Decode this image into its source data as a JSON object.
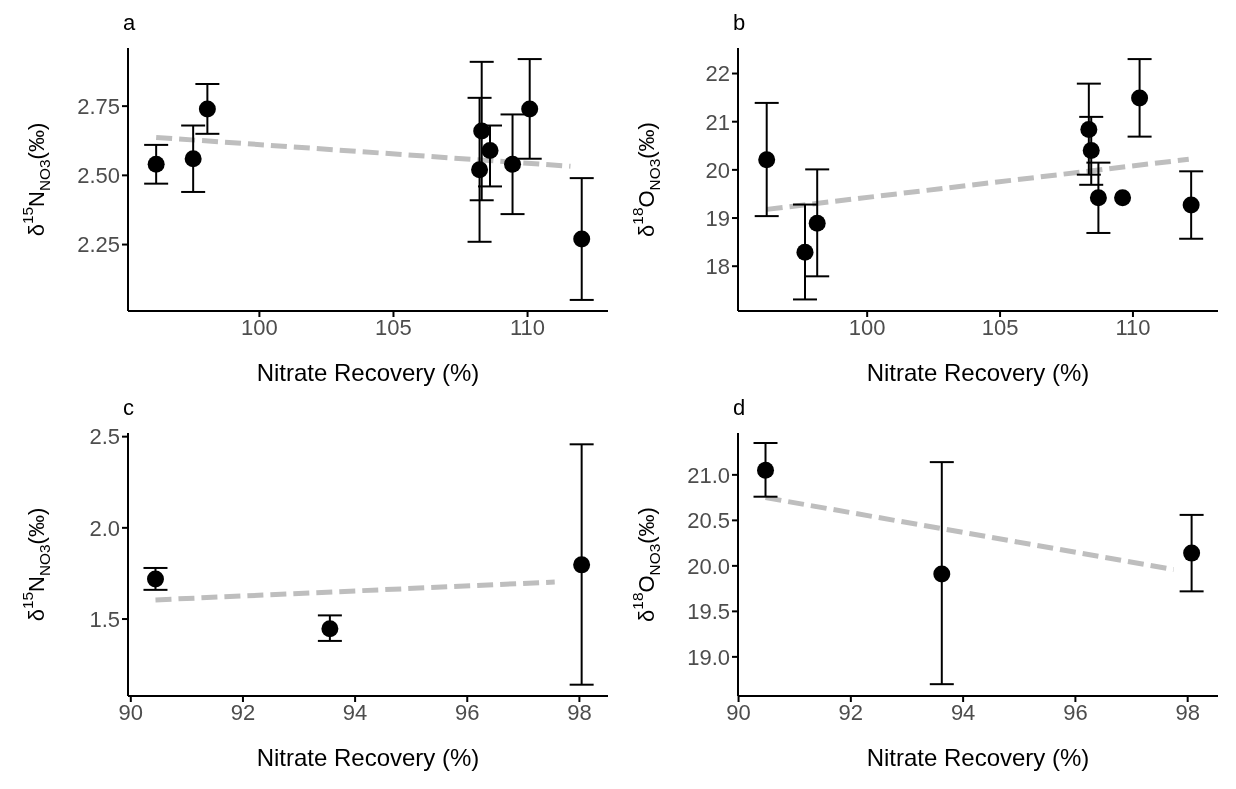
{
  "chart_data": [
    {
      "type": "scatter",
      "title": "a",
      "xlabel": "Nitrate Recovery (%)",
      "ylabel": "δ$^{15}$N$_{NO3}$(‰)",
      "xlim": [
        95.1,
        113.0
      ],
      "xticks": [
        100,
        105,
        110
      ],
      "ylim": [
        2.01,
        2.96
      ],
      "yticks": [
        {
          "value": 2.25,
          "label": "2.25"
        },
        {
          "value": 2.5,
          "label": "2.50"
        },
        {
          "value": 2.75,
          "label": "2.75"
        }
      ],
      "grid": false,
      "series": [
        {
          "type": "line",
          "color": "#bebebe",
          "line_style": "dashed",
          "marker": "none",
          "x": [
            96.15,
            111.6
          ],
          "values": [
            2.637,
            2.533
          ]
        },
        {
          "color": "#000000",
          "marker": "circle",
          "x": [
            96.15,
            97.53,
            98.06,
            108.21,
            108.29,
            108.6,
            109.44,
            110.08,
            112.02
          ],
          "values": [
            2.54,
            2.56,
            2.74,
            2.52,
            2.66,
            2.59,
            2.54,
            2.74,
            2.27
          ],
          "errors": [
            [
              2.47,
              2.61
            ],
            [
              2.44,
              2.68
            ],
            [
              2.65,
              2.83
            ],
            [
              2.26,
              2.78
            ],
            [
              2.41,
              2.91
            ],
            [
              2.46,
              2.68
            ],
            [
              2.36,
              2.72
            ],
            [
              2.56,
              2.92
            ],
            [
              2.05,
              2.49
            ]
          ]
        }
      ]
    },
    {
      "type": "scatter",
      "title": "b",
      "xlabel": "Nitrate Recovery (%)",
      "ylabel": "δ$^{18}$O$_{NO3}$(‰)",
      "xlim": [
        95.14,
        113.2
      ],
      "xticks": [
        100,
        105,
        110
      ],
      "ylim": [
        17.07,
        22.53
      ],
      "yticks": [
        18,
        19,
        20,
        21,
        22
      ],
      "grid": false,
      "series": [
        {
          "type": "line",
          "color": "#bebebe",
          "line_style": "dashed",
          "marker": "none",
          "x": [
            96.22,
            112.1
          ],
          "values": [
            19.18,
            20.22
          ]
        },
        {
          "color": "#000000",
          "marker": "circle",
          "x": [
            96.22,
            97.66,
            98.12,
            108.34,
            108.43,
            108.7,
            109.61,
            110.25,
            112.19
          ],
          "values": [
            20.21,
            18.29,
            18.89,
            20.84,
            20.4,
            19.42,
            19.42,
            21.49,
            19.27
          ],
          "errors": [
            [
              19.04,
              21.39
            ],
            [
              17.31,
              19.28
            ],
            [
              17.79,
              20.01
            ],
            [
              19.9,
              21.79
            ],
            [
              19.69,
              21.1
            ],
            [
              18.69,
              20.15
            ],
            null,
            [
              20.69,
              22.3
            ],
            [
              18.57,
              19.97
            ]
          ]
        }
      ]
    },
    {
      "type": "scatter",
      "title": "c",
      "xlabel": "Nitrate Recovery (%)",
      "ylabel": "δ$^{15}$N$_{NO3}$(‰)",
      "xlim": [
        89.95,
        98.51
      ],
      "xticks": [
        90,
        92,
        94,
        96,
        98
      ],
      "ylim": [
        1.078,
        2.52
      ],
      "yticks": [
        1.5,
        {
          "value": 2,
          "label": "2.0"
        },
        2.5
      ],
      "grid": false,
      "series": [
        {
          "type": "line",
          "color": "#bebebe",
          "line_style": "dashed",
          "marker": "none",
          "x": [
            90.44,
            97.56
          ],
          "values": [
            1.605,
            1.703
          ]
        },
        {
          "color": "#000000",
          "marker": "circle",
          "x": [
            90.44,
            93.55,
            98.04
          ],
          "values": [
            1.72,
            1.447,
            1.797
          ],
          "errors": [
            [
              1.66,
              1.78
            ],
            [
              1.38,
              1.52
            ],
            [
              1.14,
              2.458
            ]
          ]
        }
      ]
    },
    {
      "type": "scatter",
      "title": "d",
      "xlabel": "Nitrate Recovery (%)",
      "ylabel": "δ$^{18}$O$_{NO3}$(‰)",
      "xlim": [
        89.99,
        98.54
      ],
      "xticks": [
        90,
        92,
        94,
        96,
        98
      ],
      "ylim": [
        18.57,
        21.46
      ],
      "yticks": [
        {
          "value": 19,
          "label": "19.0"
        },
        19.5,
        {
          "value": 20,
          "label": "20.0"
        },
        20.5,
        {
          "value": 21,
          "label": "21.0"
        }
      ],
      "grid": false,
      "series": [
        {
          "type": "line",
          "color": "#bebebe",
          "line_style": "dashed",
          "marker": "none",
          "x": [
            90.48,
            97.75
          ],
          "values": [
            20.75,
            19.96
          ]
        },
        {
          "color": "#000000",
          "marker": "circle",
          "x": [
            90.48,
            93.62,
            98.07
          ],
          "values": [
            21.05,
            19.91,
            20.14
          ],
          "errors": [
            [
              20.76,
              21.35
            ],
            [
              18.7,
              21.14
            ],
            [
              19.72,
              20.56
            ]
          ]
        }
      ]
    }
  ]
}
